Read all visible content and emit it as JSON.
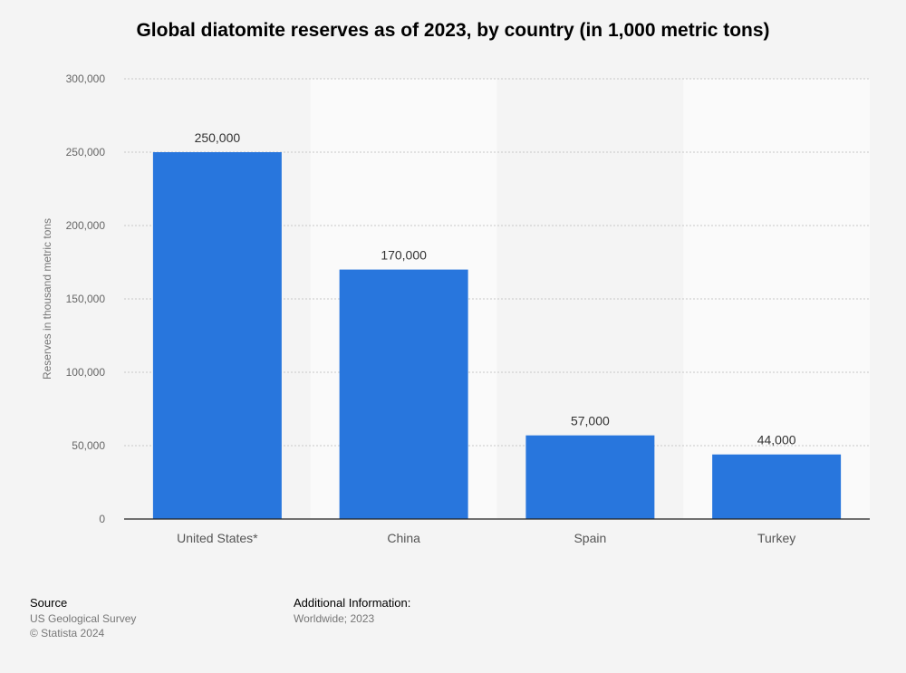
{
  "chart_data": {
    "type": "bar",
    "title": "Global diatomite reserves as of 2023, by country (in 1,000 metric tons)",
    "xlabel": "",
    "ylabel": "Reserves in thousand metric tons",
    "categories": [
      "United States*",
      "China",
      "Spain",
      "Turkey"
    ],
    "values": [
      250000,
      170000,
      57000,
      44000
    ],
    "value_labels": [
      "250,000",
      "170,000",
      "57,000",
      "44,000"
    ],
    "ylim": [
      0,
      300000
    ],
    "yticks": [
      0,
      50000,
      100000,
      150000,
      200000,
      250000,
      300000
    ],
    "ytick_labels": [
      "0",
      "50,000",
      "100,000",
      "150,000",
      "200,000",
      "250,000",
      "300,000"
    ],
    "grid": true,
    "bar_color": "#2876dd"
  },
  "footer": {
    "source_heading": "Source",
    "source_lines": [
      "US Geological Survey",
      "© Statista 2024"
    ],
    "info_heading": "Additional Information:",
    "info_text": "Worldwide; 2023"
  }
}
